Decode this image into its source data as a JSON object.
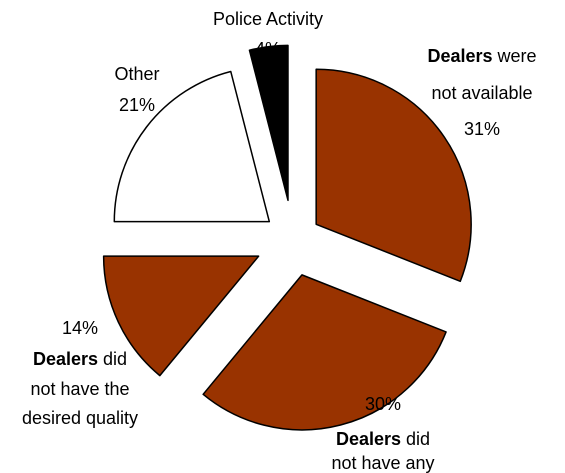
{
  "chart_data": {
    "type": "pie",
    "title": "",
    "slices": [
      {
        "label_bold": "Dealers",
        "label_rest_line1": " were",
        "label_lines": [
          "not available"
        ],
        "percent_text": "31%",
        "value": 31,
        "color": "#993300"
      },
      {
        "label_bold": "Dealers",
        "label_rest_line1": " did",
        "label_lines": [
          "not have any"
        ],
        "percent_text": "30%",
        "value": 30,
        "color": "#993300"
      },
      {
        "label_bold": "Dealers",
        "label_rest_line1": " did",
        "label_lines": [
          "not have the",
          "desired quality"
        ],
        "percent_text": "14%",
        "value": 14,
        "color": "#993300"
      },
      {
        "label_bold": "",
        "label_rest_line1": "Other",
        "label_lines": [],
        "percent_text": "21%",
        "value": 21,
        "color": "#ffffff"
      },
      {
        "label_bold": "",
        "label_rest_line1": "Police Activity",
        "label_lines": [],
        "percent_text": "4%",
        "value": 4,
        "color": "#000000"
      }
    ],
    "outline_color": "#000000",
    "start_angle_deg": 0,
    "direction": "clockwise",
    "exploded": true
  }
}
